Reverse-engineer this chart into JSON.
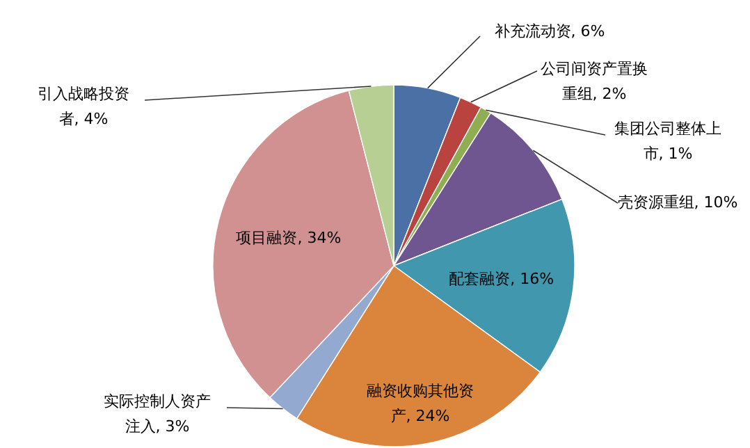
{
  "chart_data": {
    "type": "pie",
    "categories": [
      "补充流动资",
      "公司间资产置换重组",
      "集团公司整体上市",
      "壳资源重组",
      "配套融资",
      "融资收购其他资产",
      "实际控制人资产注入",
      "项目融资",
      "引入战略投资者"
    ],
    "values": [
      6,
      2,
      1,
      10,
      16,
      24,
      3,
      34,
      4
    ],
    "value_labels": [
      "6%",
      "2%",
      "1%",
      "10%",
      "16%",
      "24%",
      "3%",
      "34%",
      "4%"
    ],
    "colors": [
      "#4a70a6",
      "#b9433f",
      "#8fae52",
      "#6f5690",
      "#4197ae",
      "#db843c",
      "#93a9d0",
      "#d19190",
      "#b8cf94"
    ]
  }
}
